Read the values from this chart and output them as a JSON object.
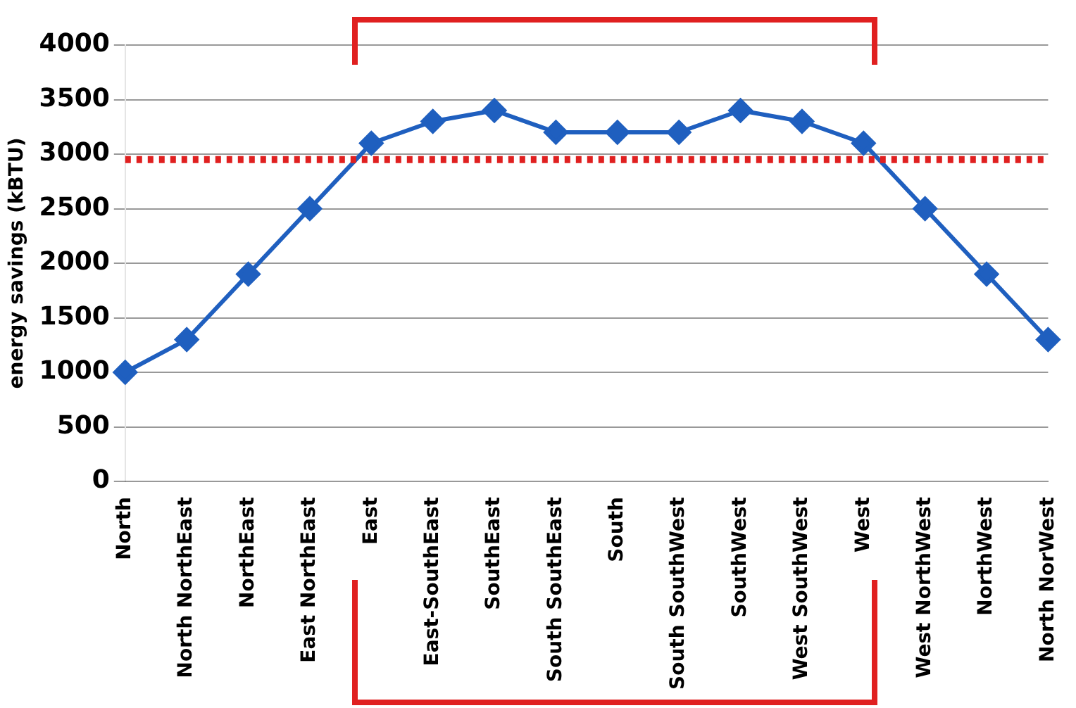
{
  "chart_data": {
    "type": "line",
    "ylabel": "energy savings (kBTU)",
    "categories": [
      "North",
      "North NorthEast",
      "NorthEast",
      "East NorthEast",
      "East",
      "East-SouthEast",
      "SouthEast",
      "South SouthEast",
      "South",
      "South SouthWest",
      "SouthWest",
      "West SouthWest",
      "West",
      "West NorthWest",
      "NorthWest",
      "North NorWest"
    ],
    "series": [
      {
        "color": "#1f5fbf",
        "values": [
          1000,
          1300,
          1900,
          2500,
          3100,
          3300,
          3400,
          3200,
          3200,
          3200,
          3400,
          3300,
          3100,
          2500,
          1900,
          1300
        ]
      }
    ],
    "ylim": [
      0,
      4000
    ],
    "yticks": [
      0,
      500,
      1000,
      1500,
      2000,
      2500,
      3000,
      3500,
      4000
    ],
    "grid": "y",
    "legend": false,
    "marker": "diamond",
    "line_style": "solid",
    "ref_lines": [
      {
        "axis": "y",
        "value": 2950,
        "color": "#e02020",
        "line_style": "dotted"
      }
    ]
  }
}
